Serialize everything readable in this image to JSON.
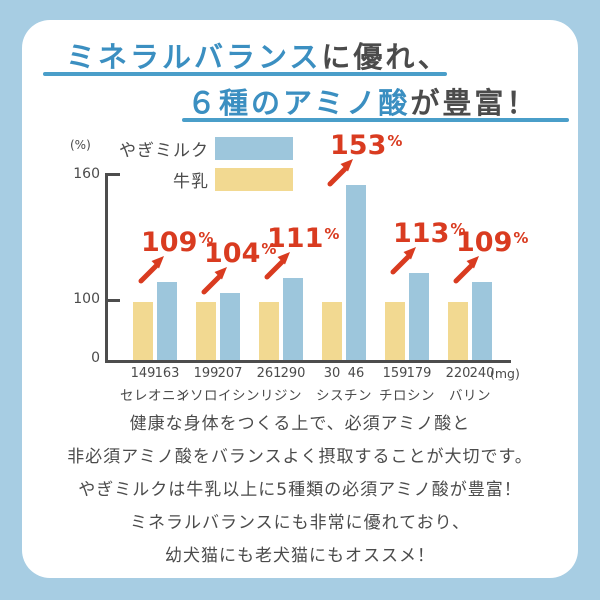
{
  "title": {
    "line1_highlight": "ミネラルバランス",
    "line1_rest": "に優れ、",
    "line2_highlight": "６種のアミノ酸",
    "line2_rest": "が豊富！"
  },
  "legend": {
    "items": [
      {
        "label": "やぎミルク",
        "color": "#9dc6dc"
      },
      {
        "label": "牛乳",
        "color": "#f2d991"
      }
    ]
  },
  "chart_data": {
    "type": "bar",
    "y_unit": "(%)",
    "x_unit": "(mg)",
    "ytick_labels": [
      "160",
      "100",
      "0"
    ],
    "ylim": [
      0,
      160
    ],
    "grid": false,
    "legend_position": "top-left",
    "categories": [
      "セレオニン",
      "イソロイシン",
      "リジン",
      "シスチン",
      "チロシン",
      "バリン"
    ],
    "series": [
      {
        "name": "牛乳",
        "color": "#f2d991",
        "values_mg": [
          149,
          199,
          261,
          30,
          159,
          220
        ],
        "percent": [
          100,
          100,
          100,
          100,
          100,
          100
        ]
      },
      {
        "name": "やぎミルク",
        "color": "#9dc6dc",
        "values_mg": [
          163,
          207,
          290,
          46,
          179,
          240
        ],
        "percent": [
          109,
          104,
          111,
          153,
          113,
          109
        ]
      }
    ],
    "percent_labels": [
      "109",
      "104",
      "111",
      "153",
      "113",
      "109"
    ],
    "percent_suffix": "%",
    "highlight_color": "#d93b20"
  },
  "body_text": {
    "lines": [
      "健康な身体をつくる上で、必須アミノ酸と",
      "非必須アミノ酸をバランスよく摂取することが大切です。",
      "やぎミルクは牛乳以上に5種類の必須アミノ酸が豊富！",
      "ミネラルバランスにも非常に優れており、",
      "幼犬猫にも老犬猫にもオススメ！"
    ]
  }
}
